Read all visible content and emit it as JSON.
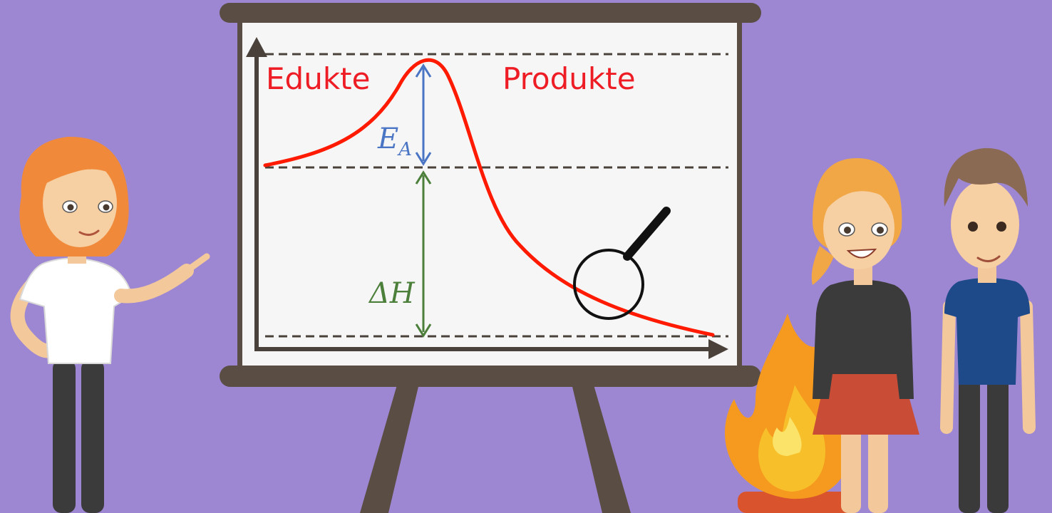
{
  "diagram": {
    "type": "reaction-energy-profile",
    "labels": {
      "left": "Edukte",
      "right": "Produkte",
      "activation": "E",
      "activation_sub": "A",
      "enthalpy": "ΔH"
    },
    "colors": {
      "background": "#9e87d2",
      "board_frame": "#56493f",
      "board_surface": "#f6f6f6",
      "curve": "#ff1a00",
      "label_text": "#ee1c24",
      "activation_arrow": "#4a74c4",
      "enthalpy_arrow": "#4b7f3a",
      "dashed_lines": "#4a413b",
      "axes": "#4a413b"
    },
    "icons": [
      "magnifier-icon",
      "fire-icon"
    ]
  },
  "characters": [
    {
      "name": "teacher-woman",
      "role": "presenter"
    },
    {
      "name": "student-girl",
      "role": "viewer"
    },
    {
      "name": "student-boy",
      "role": "viewer"
    }
  ]
}
